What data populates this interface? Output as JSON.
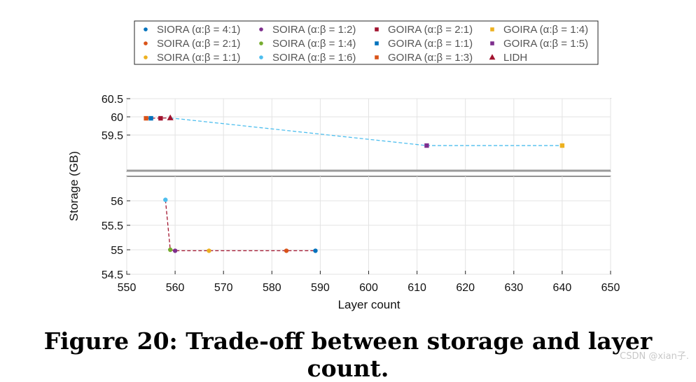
{
  "caption": "Figure 20: Trade-off between storage and layer count.",
  "watermark": "CSDN @xian子.",
  "chart_data": {
    "type": "scatter",
    "broken_y_axis": true,
    "xlabel": "Layer count",
    "ylabel": "Storage (GB)",
    "xlim": [
      550,
      650
    ],
    "x_ticks": [
      "550",
      "560",
      "570",
      "580",
      "590",
      "600",
      "610",
      "620",
      "630",
      "640",
      "650"
    ],
    "top_panel": {
      "ylim": [
        58.5,
        60.5
      ],
      "y_ticks": [
        "59.5",
        "60",
        "60.5"
      ]
    },
    "bottom_panel": {
      "ylim": [
        54.5,
        56.5
      ],
      "y_ticks": [
        "54.5",
        "55",
        "55.5",
        "56"
      ]
    },
    "grid": true,
    "legend_placement": "top-center",
    "series": [
      {
        "name": "SIORA (α:β = 4:1)",
        "marker": "circle",
        "color": "#0072BD",
        "x": 589,
        "y": 54.98
      },
      {
        "name": "SOIRA (α:β = 2:1)",
        "marker": "circle",
        "color": "#D95319",
        "x": 583,
        "y": 54.98
      },
      {
        "name": "SOIRA (α:β = 1:1)",
        "marker": "circle",
        "color": "#EDB120",
        "x": 567,
        "y": 54.98
      },
      {
        "name": "SOIRA (α:β = 1:2)",
        "marker": "circle",
        "color": "#7E2F8E",
        "x": 560,
        "y": 54.98
      },
      {
        "name": "SOIRA (α:β = 1:4)",
        "marker": "circle",
        "color": "#77AC30",
        "x": 559,
        "y": 55.0
      },
      {
        "name": "SOIRA (α:β = 1:6)",
        "marker": "circle",
        "color": "#4DBEEE",
        "x": 558,
        "y": 56.02
      },
      {
        "name": "GOIRA (α:β = 2:1)",
        "marker": "square",
        "color": "#A2142F",
        "x": 557,
        "y": 59.96
      },
      {
        "name": "GOIRA (α:β = 1:1)",
        "marker": "square",
        "color": "#0072BD",
        "x": 555,
        "y": 59.96
      },
      {
        "name": "GOIRA (α:β = 1:3)",
        "marker": "square",
        "color": "#D95319",
        "x": 554,
        "y": 59.96
      },
      {
        "name": "GOIRA (α:β = 1:4)",
        "marker": "square",
        "color": "#EDB120",
        "x": 640,
        "y": 59.21
      },
      {
        "name": "GOIRA (α:β = 1:5)",
        "marker": "square",
        "color": "#7E2F8E",
        "x": 612,
        "y": 59.21
      },
      {
        "name": "LIDH",
        "marker": "triangle",
        "color": "#A2142F",
        "x": 559,
        "y": 59.97
      }
    ],
    "connecting_lines": [
      {
        "color": "#4DBEEE",
        "style": "dashed",
        "points": [
          [
            559,
            59.97
          ],
          [
            612,
            59.21
          ],
          [
            640,
            59.21
          ]
        ]
      },
      {
        "color": "#A2142F",
        "style": "dashed",
        "points": [
          [
            554,
            59.96
          ],
          [
            559,
            59.97
          ]
        ]
      },
      {
        "color": "#A2142F",
        "style": "dashed",
        "points": [
          [
            558,
            56.02
          ],
          [
            559,
            55.0
          ],
          [
            560,
            54.98
          ],
          [
            589,
            54.98
          ]
        ]
      }
    ]
  }
}
